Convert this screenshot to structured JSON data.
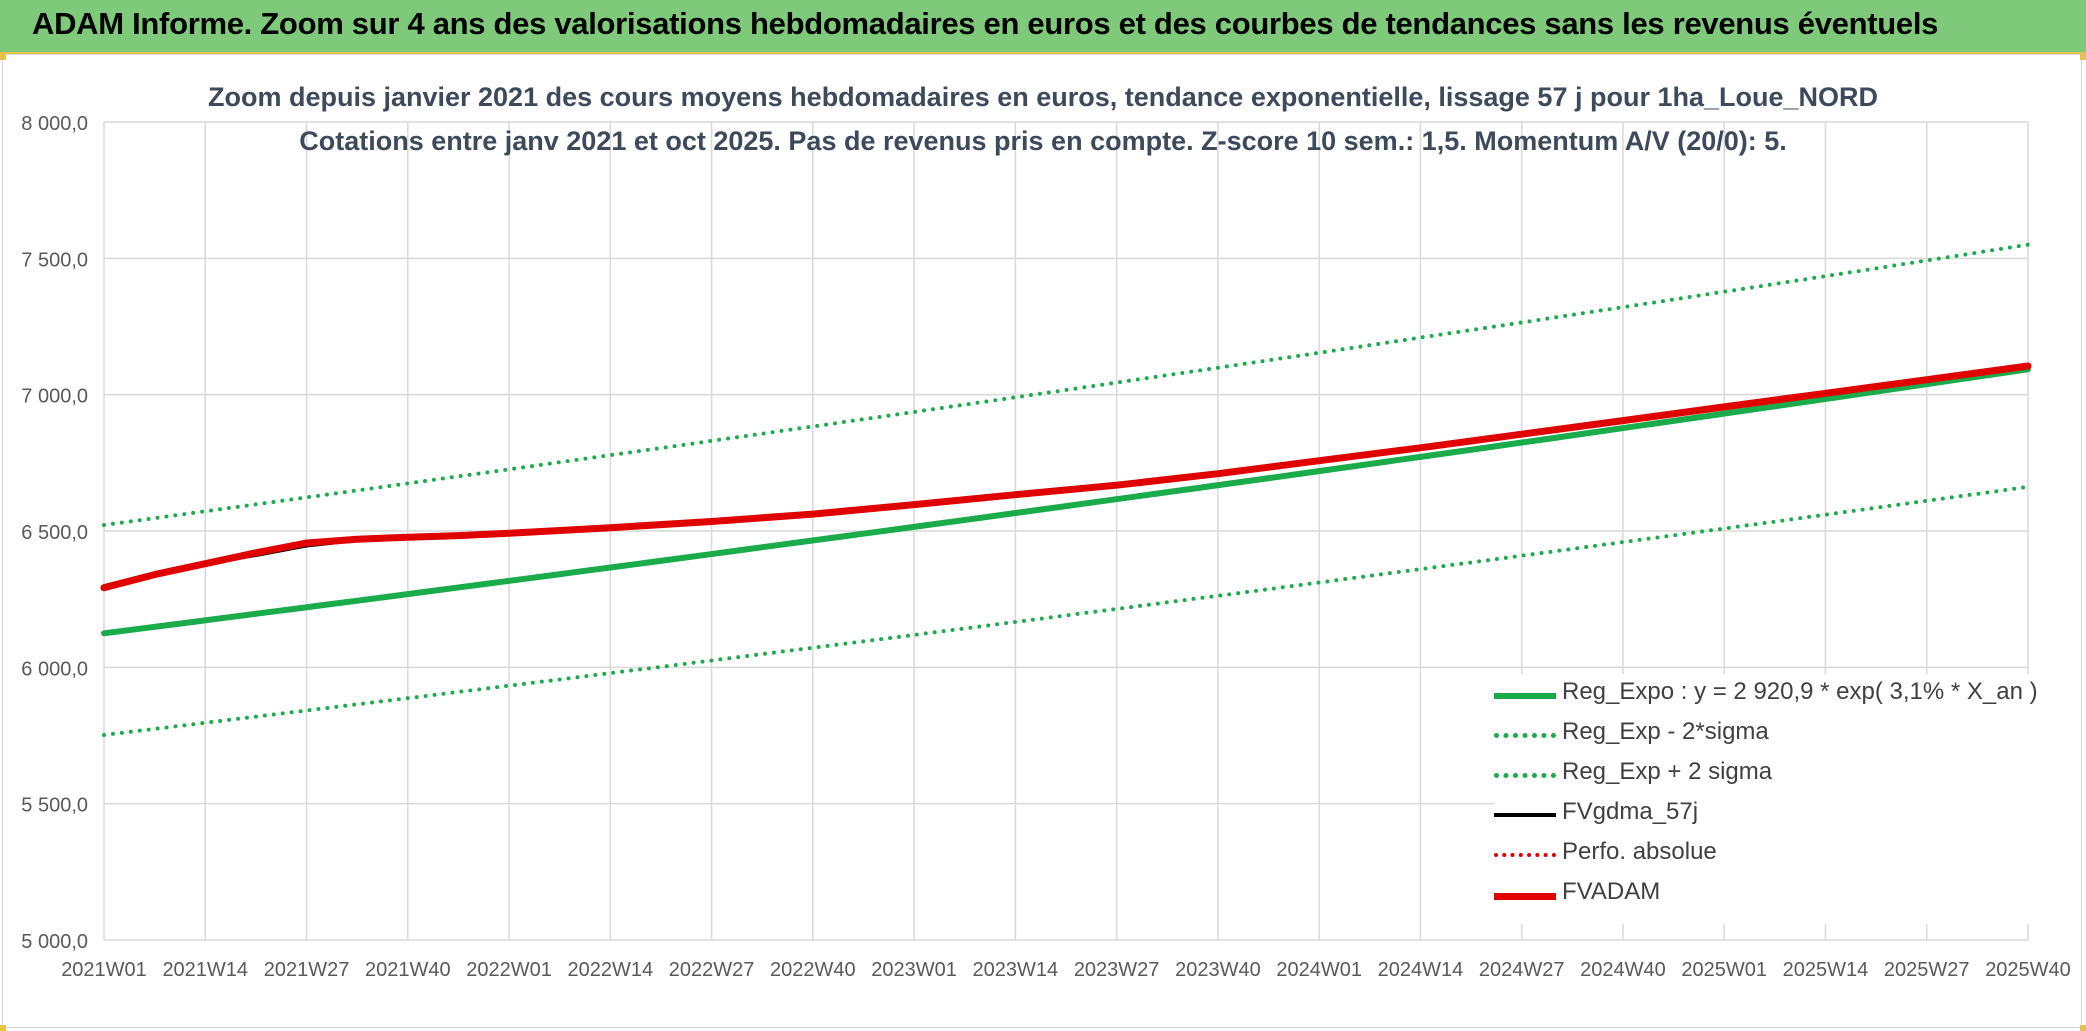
{
  "banner": {
    "title": "ADAM Informe. Zoom sur 4 ans des valorisations hebdomadaires en euros et des courbes de tendances sans les revenus éventuels",
    "color": "#7fc97a"
  },
  "chart_data": {
    "type": "line",
    "title": "Zoom depuis janvier 2021 des cours moyens hebdomadaires en euros, tendance exponentielle, lissage 57 j pour 1ha_Loue_NORD",
    "subtitle": "Cotations entre janv 2021 et oct 2025. Pas de revenus pris en compte. Z-score 10 sem.: 1,5. Momentum A/V (20/0): 5.",
    "xlabel": "",
    "ylabel": "",
    "ylim": [
      5000,
      8000
    ],
    "yticks": [
      "5 000,0",
      "5 500,0",
      "6 000,0",
      "6 500,0",
      "7 000,0",
      "7 500,0",
      "8 000,0"
    ],
    "ytick_values": [
      5000,
      5500,
      6000,
      6500,
      7000,
      7500,
      8000
    ],
    "xticks": [
      "2021W01",
      "2021W14",
      "2021W27",
      "2021W40",
      "2022W01",
      "2022W14",
      "2022W27",
      "2022W40",
      "2023W01",
      "2023W14",
      "2023W27",
      "2023W40",
      "2024W01",
      "2024W14",
      "2024W27",
      "2024W40",
      "2025W01",
      "2025W14",
      "2025W27",
      "2025W40"
    ],
    "grid": true,
    "legend_position": "bottom-right",
    "series": [
      {
        "name": "Reg_Expo : y = 2 920,9 * exp( 3,1% *  X_an )",
        "color": "#1aab4b",
        "style": "solid",
        "width": 6,
        "x": [
          0,
          19
        ],
        "values": [
          6125,
          7093
        ],
        "shape": "exp"
      },
      {
        "name": "Reg_Exp - 2*sigma",
        "color": "#1aab4b",
        "style": "dotted",
        "width": 4,
        "x": [
          0,
          19
        ],
        "values": [
          5752,
          6662
        ],
        "shape": "exp"
      },
      {
        "name": "Reg_Exp + 2 sigma",
        "color": "#1aab4b",
        "style": "dotted",
        "width": 4,
        "x": [
          0,
          19
        ],
        "values": [
          6522,
          7550
        ],
        "shape": "exp"
      },
      {
        "name": "FVgdma_57j",
        "color": "#000000",
        "style": "solid",
        "width": 3,
        "x": [
          0,
          0.5,
          1,
          1.5,
          2,
          2.5,
          3,
          3.5,
          4,
          5,
          6,
          7,
          8,
          9,
          10,
          11,
          12,
          13,
          14,
          15,
          16,
          17,
          18,
          19
        ],
        "values": [
          6292,
          6338,
          6378,
          6410,
          6445,
          6465,
          6475,
          6482,
          6492,
          6512,
          6535,
          6562,
          6597,
          6633,
          6668,
          6710,
          6758,
          6805,
          6855,
          6905,
          6955,
          7005,
          7055,
          7105
        ]
      },
      {
        "name": "Perfo. absolue",
        "color": "#e00000",
        "style": "dotted",
        "width": 3,
        "x": [
          0,
          0.5,
          1,
          1.5,
          2,
          2.5,
          3,
          3.5,
          4,
          5,
          6,
          7,
          8,
          9,
          10,
          11,
          12,
          13,
          14,
          15,
          16,
          17,
          18,
          19
        ],
        "values": [
          6292,
          6340,
          6380,
          6420,
          6456,
          6470,
          6477,
          6483,
          6492,
          6512,
          6535,
          6562,
          6597,
          6633,
          6668,
          6710,
          6758,
          6805,
          6855,
          6905,
          6955,
          7005,
          7055,
          7105
        ]
      },
      {
        "name": "FVADAM",
        "color": "#e00000",
        "style": "solid",
        "width": 7,
        "x": [
          0,
          0.5,
          1,
          1.5,
          2,
          2.5,
          3,
          3.5,
          4,
          5,
          6,
          7,
          8,
          9,
          10,
          11,
          12,
          13,
          14,
          15,
          16,
          17,
          18,
          19
        ],
        "values": [
          6292,
          6340,
          6380,
          6420,
          6456,
          6470,
          6477,
          6483,
          6492,
          6512,
          6535,
          6562,
          6597,
          6633,
          6668,
          6710,
          6758,
          6805,
          6855,
          6905,
          6955,
          7005,
          7055,
          7105
        ]
      }
    ]
  }
}
